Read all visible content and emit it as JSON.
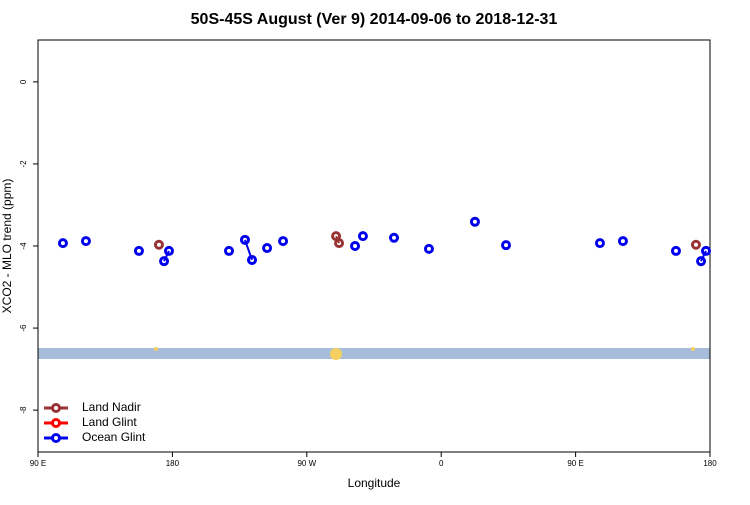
{
  "chart_data": {
    "type": "scatter",
    "title": "50S-45S August (Ver 9)   2014-09-06 to 2018-12-31",
    "x_label": "Longitude",
    "y_label": "XCO2 - MLO trend (ppm)",
    "xlim": [
      90,
      540
    ],
    "ylim": [
      -9.02,
      1.02
    ],
    "xticks": [
      {
        "value": 90,
        "label": "90 E"
      },
      {
        "value": 180,
        "label": "180"
      },
      {
        "value": 270,
        "label": "90 W"
      },
      {
        "value": 360,
        "label": "0"
      },
      {
        "value": 450,
        "label": "90 E"
      },
      {
        "value": 540,
        "label": "180"
      }
    ],
    "yticks": [
      0,
      -2,
      -4,
      -6,
      -8
    ],
    "legend": "bottom-left",
    "series": [
      {
        "name": "Land Nadir",
        "color": "#993333",
        "x": [
          171.0,
          289.6,
          291.6,
          530.6
        ],
        "values": [
          -3.97,
          -3.76,
          -3.93,
          -3.97
        ]
      },
      {
        "name": "Land Glint",
        "color": "#ff0000",
        "x": [],
        "values": []
      },
      {
        "name": "Ocean Glint",
        "color": "#0000ee",
        "x": [
          106.7,
          122.1,
          157.6,
          174.4,
          177.7,
          217.9,
          228.6,
          233.3,
          243.4,
          254.1,
          302.3,
          307.6,
          328.4,
          351.8,
          382.6,
          403.4,
          466.3,
          481.7,
          517.2,
          534.0,
          537.3
        ],
        "values": [
          -3.93,
          -3.88,
          -4.12,
          -4.37,
          -4.12,
          -4.12,
          -3.85,
          -4.34,
          -4.05,
          -3.88,
          -4.0,
          -3.76,
          -3.8,
          -4.07,
          -3.41,
          -3.98,
          -3.93,
          -3.88,
          -4.12,
          -4.37,
          -4.12
        ]
      }
    ]
  }
}
